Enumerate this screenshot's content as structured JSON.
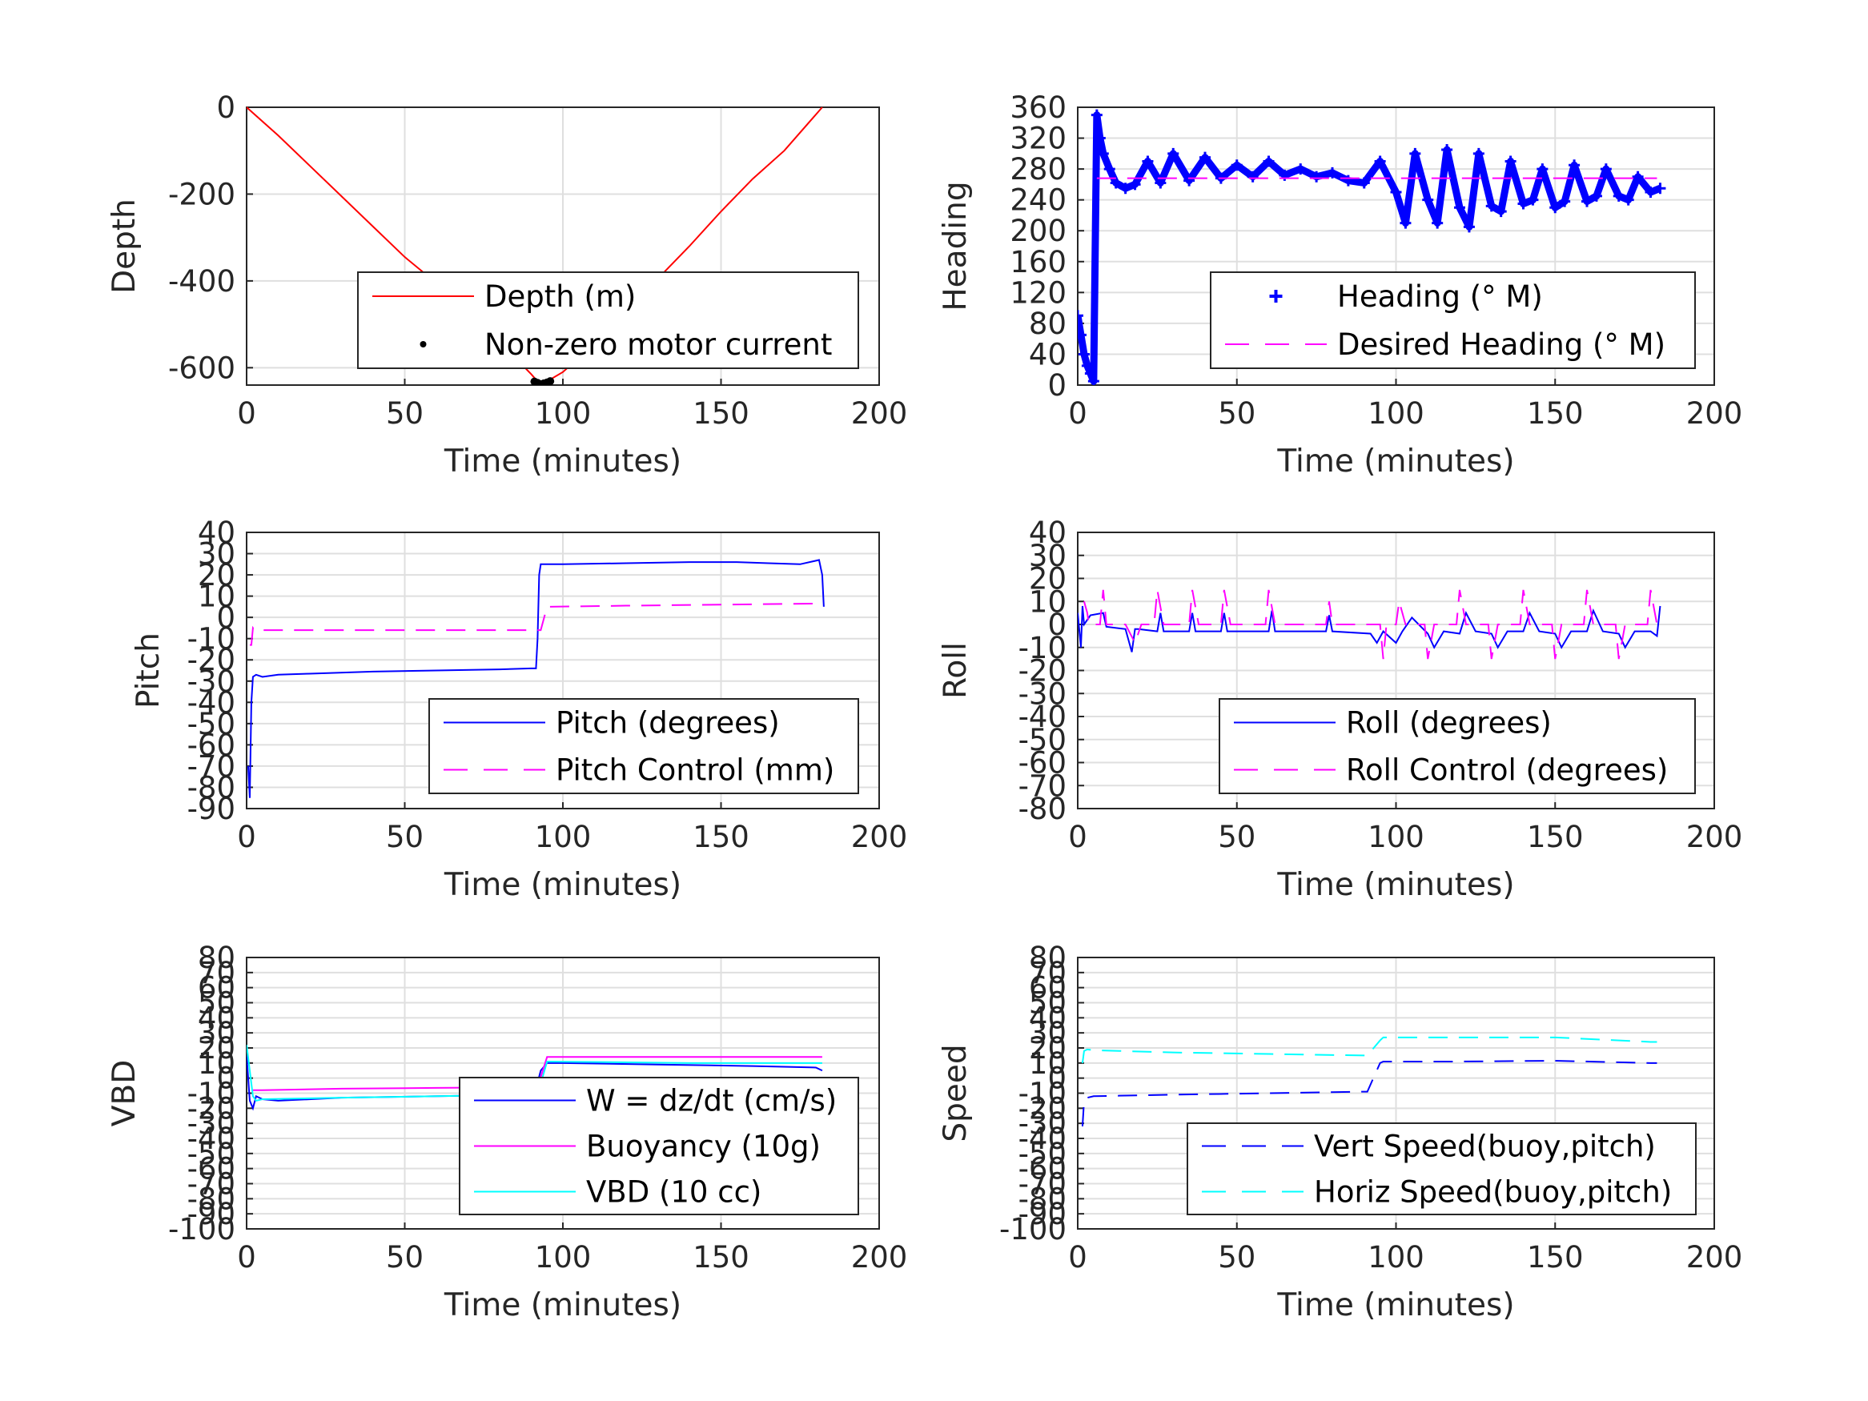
{
  "chart_data": [
    {
      "id": "depth",
      "type": "line",
      "xlabel": "Time (minutes)",
      "ylabel": "Depth",
      "xlim": [
        0,
        200
      ],
      "ylim": [
        -640,
        0
      ],
      "xticks": [
        0,
        50,
        100,
        150,
        200
      ],
      "yticks": [
        0,
        -200,
        -400,
        -600
      ],
      "grid": true,
      "legend_position": "bottom-right",
      "series": [
        {
          "name": "Depth (m)",
          "color": "#ff0000",
          "style": "solid",
          "x": [
            0,
            10,
            20,
            30,
            40,
            50,
            60,
            70,
            80,
            90,
            93,
            100,
            110,
            120,
            130,
            140,
            150,
            160,
            170,
            182
          ],
          "y": [
            0,
            -65,
            -135,
            -205,
            -275,
            -345,
            -405,
            -470,
            -540,
            -615,
            -640,
            -610,
            -545,
            -470,
            -395,
            -320,
            -240,
            -165,
            -100,
            0
          ]
        },
        {
          "name": "Non-zero motor current",
          "color": "#000000",
          "style": "dots",
          "x": [
            91,
            92,
            93,
            94,
            95,
            96
          ],
          "y": [
            -632,
            -635,
            -638,
            -636,
            -634,
            -631
          ]
        }
      ]
    },
    {
      "id": "heading",
      "type": "scatter",
      "xlabel": "Time (minutes)",
      "ylabel": "Heading",
      "xlim": [
        0,
        200
      ],
      "ylim": [
        0,
        360
      ],
      "xticks": [
        0,
        50,
        100,
        150,
        200
      ],
      "yticks": [
        0,
        40,
        80,
        120,
        160,
        200,
        240,
        280,
        320,
        360
      ],
      "ytick_labels": [
        "0",
        "40",
        "80",
        "120",
        "160",
        "200",
        "240",
        "280",
        "320",
        "360"
      ],
      "grid": true,
      "legend_position": "bottom-right",
      "series": [
        {
          "name": "Heading (° M)",
          "color": "#0000ff",
          "style": "plus",
          "x": [
            0,
            1,
            2,
            3,
            4,
            5,
            6,
            7,
            8,
            10,
            12,
            15,
            18,
            22,
            26,
            30,
            35,
            40,
            45,
            50,
            55,
            60,
            65,
            70,
            75,
            80,
            85,
            90,
            95,
            100,
            103,
            106,
            110,
            113,
            116,
            120,
            123,
            126,
            130,
            133,
            136,
            140,
            143,
            146,
            150,
            153,
            156,
            160,
            163,
            166,
            170,
            173,
            176,
            180,
            183
          ],
          "y": [
            90,
            65,
            40,
            25,
            15,
            5,
            350,
            320,
            300,
            280,
            262,
            255,
            260,
            290,
            262,
            300,
            265,
            295,
            268,
            285,
            270,
            290,
            272,
            280,
            270,
            275,
            265,
            262,
            290,
            250,
            210,
            300,
            240,
            210,
            305,
            230,
            205,
            300,
            232,
            225,
            290,
            235,
            240,
            280,
            230,
            238,
            285,
            238,
            245,
            280,
            245,
            240,
            270,
            250,
            255
          ]
        }
      ],
      "reference": {
        "name": "Desired Heading (° M)",
        "color": "#ff00ff",
        "style": "dashed",
        "x": [
          6,
          182
        ],
        "y": [
          268,
          268
        ]
      }
    },
    {
      "id": "pitch",
      "type": "line",
      "xlabel": "Time (minutes)",
      "ylabel": "Pitch",
      "xlim": [
        0,
        200
      ],
      "ylim": [
        -90,
        40
      ],
      "xticks": [
        0,
        50,
        100,
        150,
        200
      ],
      "yticks": [
        40,
        30,
        20,
        10,
        0,
        -10,
        -20,
        -30,
        -40,
        -50,
        -60,
        -70,
        -80,
        -90
      ],
      "grid": true,
      "legend_position": "bottom-right",
      "series": [
        {
          "name": "Pitch (degrees)",
          "color": "#0000ff",
          "style": "solid",
          "x": [
            0.5,
            1,
            1.5,
            2,
            3,
            5,
            10,
            20,
            40,
            60,
            80,
            90,
            91.5,
            92,
            92.5,
            93,
            100,
            120,
            140,
            155,
            165,
            175,
            181,
            182,
            182.5
          ],
          "y": [
            -70,
            -85,
            -40,
            -28,
            -27,
            -28,
            -27,
            -26.5,
            -25.5,
            -25,
            -24.5,
            -24,
            -24,
            -10,
            20,
            25,
            25,
            25.5,
            26,
            26,
            25.5,
            25,
            27,
            20,
            5
          ]
        },
        {
          "name": "Pitch Control (mm)",
          "color": "#ff00ff",
          "style": "dashed",
          "x": [
            1,
            1.5,
            2,
            2.5,
            3,
            92,
            93,
            95,
            120,
            150,
            182
          ],
          "y": [
            -13,
            -13,
            -5,
            -6,
            -6,
            -6,
            -6,
            5,
            5.5,
            6,
            6.5
          ]
        }
      ]
    },
    {
      "id": "roll",
      "type": "line",
      "xlabel": "Time (minutes)",
      "ylabel": "Roll",
      "xlim": [
        0,
        200
      ],
      "ylim": [
        -80,
        40
      ],
      "xticks": [
        0,
        50,
        100,
        150,
        200
      ],
      "yticks": [
        40,
        30,
        20,
        10,
        0,
        -10,
        -20,
        -30,
        -40,
        -50,
        -60,
        -70,
        -80
      ],
      "grid": true,
      "legend_position": "bottom-right",
      "series": [
        {
          "name": "Roll (degrees)",
          "color": "#0000ff",
          "style": "solid",
          "x": [
            0,
            1,
            1.5,
            2,
            4,
            8,
            9,
            15,
            17,
            18,
            19,
            25,
            26,
            27,
            35,
            36,
            37,
            45,
            46,
            47,
            60,
            61,
            62,
            78,
            79,
            80,
            92,
            94,
            96,
            100,
            102,
            105,
            110,
            112,
            115,
            120,
            122,
            125,
            130,
            132,
            135,
            140,
            142,
            145,
            150,
            152,
            155,
            160,
            162,
            165,
            170,
            172,
            175,
            180,
            182,
            183
          ],
          "y": [
            5,
            -10,
            8,
            0,
            4,
            5,
            -1,
            -2,
            -12,
            -2,
            -2,
            -3,
            5,
            -3,
            -3,
            5,
            -3,
            -3,
            5,
            -3,
            -3,
            6,
            -3,
            -3,
            4,
            -3,
            -4,
            -8,
            -3,
            -8,
            -3,
            3,
            -4,
            -10,
            -3,
            -4,
            5,
            -3,
            -4,
            -10,
            -3,
            -3,
            5,
            -3,
            -4,
            -10,
            -3,
            -3,
            6,
            -3,
            -4,
            -10,
            -3,
            -3,
            -5,
            8
          ]
        },
        {
          "name": "Roll Control (degrees)",
          "color": "#ff00ff",
          "style": "dashed",
          "x": [
            2,
            3,
            3.5,
            7,
            8,
            9,
            15,
            18,
            20,
            24,
            25,
            27,
            35,
            36,
            38,
            45,
            46,
            48,
            59,
            60,
            62,
            78,
            79,
            80,
            95,
            96,
            97,
            100,
            101,
            103,
            109,
            110,
            112,
            119,
            120,
            122,
            129,
            130,
            132,
            139,
            140,
            142,
            149,
            150,
            152,
            159,
            160,
            162,
            169,
            170,
            172,
            179,
            180,
            182
          ],
          "y": [
            10,
            5,
            0,
            0,
            15,
            0,
            0,
            -8,
            0,
            0,
            15,
            0,
            0,
            15,
            0,
            0,
            15,
            0,
            0,
            15,
            0,
            0,
            10,
            0,
            0,
            -15,
            0,
            0,
            10,
            0,
            0,
            -15,
            0,
            0,
            15,
            0,
            0,
            -15,
            0,
            0,
            15,
            0,
            0,
            -15,
            0,
            0,
            15,
            0,
            0,
            -15,
            0,
            0,
            15,
            0
          ]
        }
      ]
    },
    {
      "id": "vbd",
      "type": "line",
      "xlabel": "Time (minutes)",
      "ylabel": "VBD",
      "xlim": [
        0,
        200
      ],
      "ylim": [
        -100,
        80
      ],
      "xticks": [
        0,
        50,
        100,
        150,
        200
      ],
      "yticks": [
        80,
        70,
        60,
        50,
        40,
        30,
        20,
        10,
        0,
        -10,
        -20,
        -30,
        -40,
        -50,
        -60,
        -70,
        -80,
        -90,
        -100
      ],
      "ytick_labels": [
        "80",
        "70",
        "60",
        "50",
        "40",
        "30",
        "20",
        "10",
        "0",
        "-10",
        "-20",
        "-30",
        "-40",
        "-50",
        "-60",
        "-70",
        "-80",
        "-90",
        "-100"
      ],
      "grid": true,
      "legend_position": "bottom-right",
      "series": [
        {
          "name": "W = dz/dt (cm/s)",
          "color": "#0000ff",
          "style": "solid",
          "x": [
            0,
            1,
            2,
            3,
            5,
            10,
            30,
            60,
            90,
            91,
            93,
            95,
            100,
            130,
            160,
            180,
            182
          ],
          "y": [
            15,
            -15,
            -20,
            -12,
            -14,
            -15,
            -13,
            -12,
            -11,
            -11,
            5,
            10,
            10,
            9,
            8,
            7,
            5
          ]
        },
        {
          "name": "Buoyancy (10g)",
          "color": "#ff00ff",
          "style": "solid",
          "x": [
            2,
            5,
            30,
            60,
            91,
            92,
            95,
            140,
            182
          ],
          "y": [
            -8,
            -8,
            -7,
            -6.5,
            -6,
            -6,
            14,
            14,
            14
          ]
        },
        {
          "name": "VBD (10 cc)",
          "color": "#00ffff",
          "style": "solid",
          "x": [
            0,
            1,
            2,
            3,
            5,
            30,
            60,
            91,
            92,
            95,
            140,
            182
          ],
          "y": [
            22,
            5,
            -12,
            -15,
            -14,
            -13,
            -12,
            -11,
            -11,
            11,
            10,
            10
          ]
        }
      ]
    },
    {
      "id": "speed",
      "type": "line",
      "xlabel": "Time (minutes)",
      "ylabel": "Speed",
      "xlim": [
        0,
        200
      ],
      "ylim": [
        -100,
        80
      ],
      "xticks": [
        0,
        50,
        100,
        150,
        200
      ],
      "yticks": [
        80,
        70,
        60,
        50,
        40,
        30,
        20,
        10,
        0,
        -10,
        -20,
        -30,
        -40,
        -50,
        -60,
        -70,
        -80,
        -90,
        -100
      ],
      "ytick_labels": [
        "80",
        "70",
        "60",
        "50",
        "40",
        "30",
        "20",
        "10",
        "0",
        "-10",
        "-20",
        "-30",
        "-40",
        "-50",
        "-60",
        "-70",
        "-80",
        "-90",
        "-100"
      ],
      "grid": true,
      "legend_position": "bottom-right",
      "series": [
        {
          "name": "Vert Speed(buoy,pitch)",
          "color": "#0000ff",
          "style": "dashed",
          "x": [
            1.5,
            2,
            3,
            5,
            30,
            60,
            90,
            91,
            95,
            96,
            120,
            150,
            180,
            182
          ],
          "y": [
            -32,
            -15,
            -13,
            -12,
            -11,
            -10,
            -9,
            -9,
            10,
            11,
            11,
            11.5,
            10,
            10
          ]
        },
        {
          "name": "Horiz Speed(buoy,pitch)",
          "color": "#00ffff",
          "style": "dashed",
          "x": [
            1.5,
            2,
            3,
            5,
            30,
            60,
            90,
            91,
            95,
            96,
            120,
            150,
            180,
            182
          ],
          "y": [
            10,
            18,
            19,
            18.5,
            17,
            16,
            15,
            15,
            25,
            27,
            27,
            27,
            24,
            24
          ]
        }
      ]
    }
  ]
}
